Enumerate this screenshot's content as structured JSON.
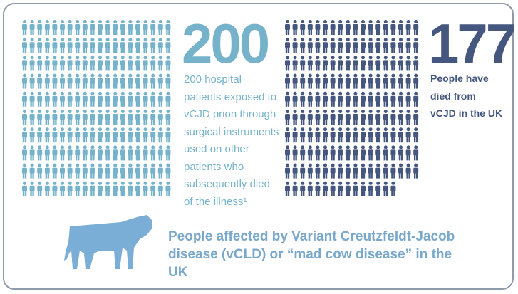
{
  "chart_data": {
    "type": "pictogram",
    "title": "People affected by Variant Creutzfeldt-Jacob disease (vCLD) or “mad cow disease” in the UK",
    "series": [
      {
        "name": "200 hospital patients exposed to vCJD prion through surgical instruments used on other patients who subsequently died of the illness¹",
        "color": "#76b3cb",
        "values": [
          200
        ]
      },
      {
        "name": "People have died from vCJD in the UK",
        "color": "#46577f",
        "values": [
          177
        ]
      }
    ]
  }
}
